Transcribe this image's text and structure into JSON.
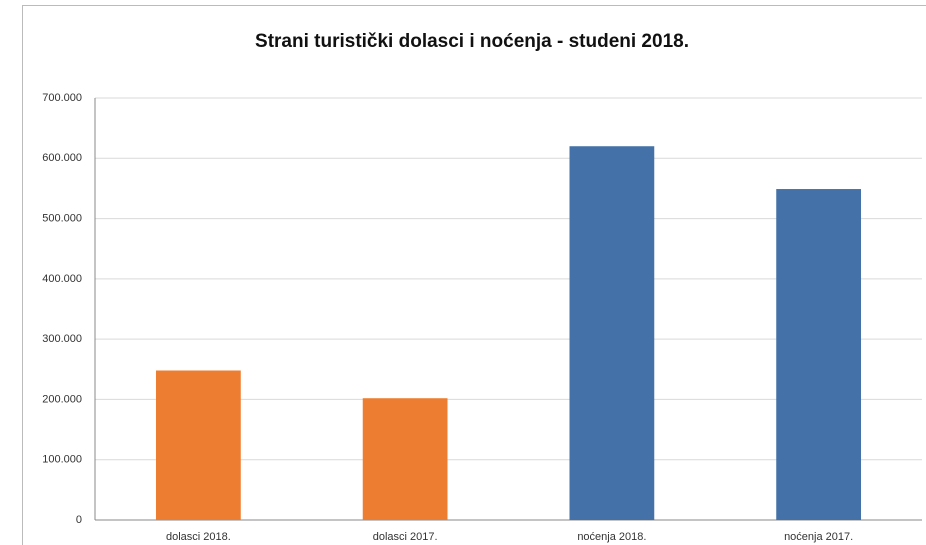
{
  "chart_data": {
    "type": "bar",
    "title": "Strani turistički dolasci i noćenja - studeni 2018.",
    "categories": [
      "dolasci 2018.",
      "dolasci 2017.",
      "noćenja 2018.",
      "noćenja 2017."
    ],
    "values": [
      248000,
      202000,
      620000,
      549000
    ],
    "colors": [
      "#ed7d31",
      "#ed7d31",
      "#4472a8",
      "#4472a8"
    ],
    "ylim": [
      0,
      700000
    ],
    "yticks": [
      0,
      {
        "value": 100000,
        "label": "100.000"
      },
      {
        "value": 200000,
        "label": "200.000"
      },
      {
        "value": 300000,
        "label": "300.000"
      },
      {
        "value": 400000,
        "label": "400.000"
      },
      {
        "value": 500000,
        "label": "500.000"
      },
      {
        "value": 600000,
        "label": "600.000"
      },
      {
        "value": 700000,
        "label": "700.000"
      }
    ],
    "grid": true
  }
}
